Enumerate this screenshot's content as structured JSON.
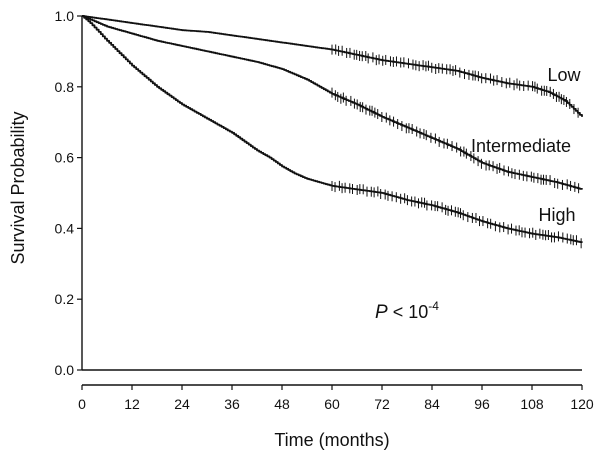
{
  "chart_data": {
    "type": "line",
    "xlabel": "Time (months)",
    "ylabel": "Survival Probability",
    "xlim": [
      0,
      120
    ],
    "ylim": [
      0.0,
      1.0
    ],
    "x_ticks": [
      0,
      12,
      24,
      36,
      48,
      60,
      72,
      84,
      96,
      108,
      120
    ],
    "y_ticks": [
      0.0,
      0.2,
      0.4,
      0.6,
      0.8,
      1.0
    ],
    "y_tick_labels": [
      "0.0",
      "0.2",
      "0.4",
      "0.6",
      "0.8",
      "1.0"
    ],
    "grid": false,
    "annotation": {
      "italic": "P",
      "text": " < 10",
      "sup": "-4"
    },
    "censoring_marks": "shown as vertical ticks on each curve from about 60 to 120 months",
    "series": [
      {
        "name": "Low",
        "x": [
          0,
          3,
          6,
          12,
          18,
          24,
          30,
          36,
          42,
          48,
          54,
          60,
          66,
          72,
          78,
          84,
          90,
          96,
          102,
          108,
          112,
          116,
          120
        ],
        "y": [
          1.0,
          0.995,
          0.99,
          0.98,
          0.97,
          0.96,
          0.955,
          0.945,
          0.935,
          0.925,
          0.915,
          0.905,
          0.89,
          0.875,
          0.865,
          0.855,
          0.845,
          0.825,
          0.81,
          0.8,
          0.785,
          0.76,
          0.715
        ]
      },
      {
        "name": "Intermediate",
        "x": [
          0,
          3,
          6,
          12,
          18,
          24,
          30,
          36,
          42,
          48,
          54,
          60,
          66,
          72,
          78,
          84,
          90,
          96,
          102,
          108,
          114,
          120
        ],
        "y": [
          1.0,
          0.985,
          0.97,
          0.95,
          0.93,
          0.915,
          0.9,
          0.885,
          0.87,
          0.85,
          0.82,
          0.78,
          0.75,
          0.715,
          0.685,
          0.655,
          0.625,
          0.585,
          0.56,
          0.545,
          0.53,
          0.51
        ]
      },
      {
        "name": "High",
        "x": [
          0,
          2,
          4,
          6,
          9,
          12,
          15,
          18,
          21,
          24,
          27,
          30,
          33,
          36,
          39,
          42,
          45,
          48,
          51,
          54,
          57,
          60,
          66,
          72,
          78,
          84,
          90,
          96,
          102,
          108,
          114,
          120
        ],
        "y": [
          1.0,
          0.98,
          0.955,
          0.93,
          0.895,
          0.86,
          0.83,
          0.8,
          0.775,
          0.75,
          0.73,
          0.71,
          0.69,
          0.67,
          0.645,
          0.62,
          0.6,
          0.575,
          0.555,
          0.54,
          0.53,
          0.52,
          0.51,
          0.5,
          0.48,
          0.465,
          0.445,
          0.42,
          0.4,
          0.385,
          0.375,
          0.36
        ]
      }
    ]
  }
}
